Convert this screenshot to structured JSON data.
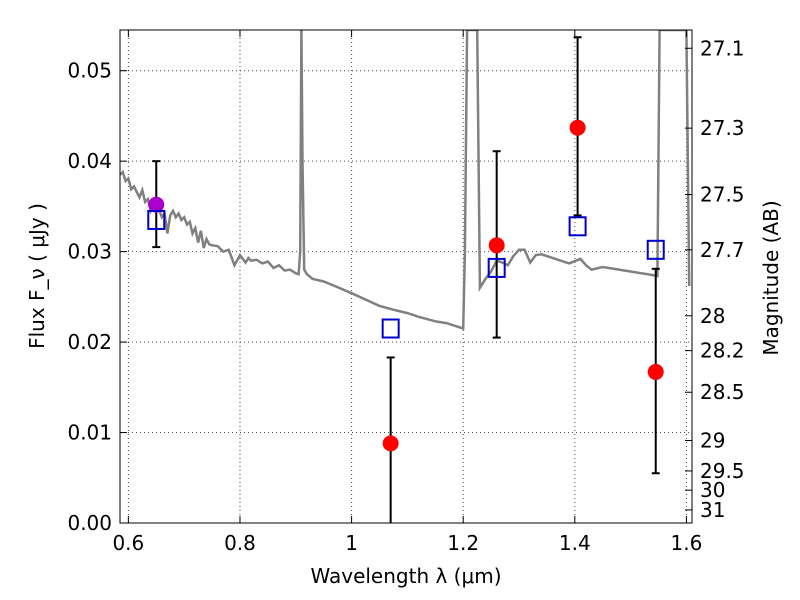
{
  "chart_data": {
    "type": "scatter",
    "title": "",
    "xlabel": "Wavelength  λ (μm)",
    "ylabel": "Flux  F_ν  ( μJy )",
    "y2label": "Magnitude (AB)",
    "xlim": [
      0.585,
      1.61
    ],
    "ylim": [
      0.0,
      0.0545
    ],
    "grid": true,
    "x_ticks": [
      0.6,
      0.8,
      1.0,
      1.2,
      1.4,
      1.6
    ],
    "x_tick_labels": [
      "0.6",
      "0.8",
      "1",
      "1.2",
      "1.4",
      "1.6"
    ],
    "y_ticks": [
      0.0,
      0.01,
      0.02,
      0.03,
      0.04,
      0.05
    ],
    "y_tick_labels": [
      "0.00",
      "0.01",
      "0.02",
      "0.03",
      "0.04",
      "0.05"
    ],
    "y2_ticks": [
      "27.1",
      "27.3",
      "27.5",
      "27.7",
      "28",
      "28.2",
      "28.5",
      "29",
      "29.5",
      "30",
      "31"
    ],
    "colors": {
      "model": "#808080",
      "observed": "#ff0000",
      "highlight": "#aa00cc",
      "synthetic": "#0000cc",
      "errorbar": "#000000"
    },
    "model_spectrum": {
      "x": [
        0.585,
        0.59,
        0.595,
        0.6,
        0.605,
        0.61,
        0.615,
        0.62,
        0.625,
        0.63,
        0.635,
        0.64,
        0.645,
        0.65,
        0.655,
        0.66,
        0.665,
        0.67,
        0.675,
        0.68,
        0.685,
        0.69,
        0.695,
        0.7,
        0.705,
        0.71,
        0.715,
        0.72,
        0.725,
        0.73,
        0.735,
        0.74,
        0.745,
        0.75,
        0.76,
        0.77,
        0.78,
        0.79,
        0.8,
        0.81,
        0.815,
        0.82,
        0.83,
        0.84,
        0.85,
        0.86,
        0.87,
        0.88,
        0.89,
        0.9,
        0.905,
        0.908,
        0.91,
        0.912,
        0.915,
        0.92,
        0.93,
        0.95,
        0.97,
        1.0,
        1.05,
        1.08,
        1.1,
        1.12,
        1.15,
        1.17,
        1.19,
        1.2,
        1.203,
        1.207,
        1.21,
        1.213,
        1.218,
        1.222,
        1.225,
        1.23,
        1.24,
        1.25,
        1.26,
        1.27,
        1.28,
        1.29,
        1.3,
        1.31,
        1.32,
        1.33,
        1.34,
        1.35,
        1.37,
        1.39,
        1.41,
        1.42,
        1.43,
        1.45,
        1.5,
        1.53,
        1.54,
        1.548,
        1.552,
        1.556,
        1.56,
        1.57,
        1.58,
        1.59,
        1.595,
        1.6,
        1.605
      ],
      "y": [
        0.0385,
        0.0388,
        0.0378,
        0.0381,
        0.0369,
        0.0372,
        0.0366,
        0.036,
        0.0368,
        0.0355,
        0.0358,
        0.0345,
        0.0352,
        0.0348,
        0.0346,
        0.0338,
        0.0342,
        0.032,
        0.034,
        0.0345,
        0.0338,
        0.0342,
        0.0335,
        0.0338,
        0.033,
        0.0333,
        0.032,
        0.0326,
        0.031,
        0.0323,
        0.0304,
        0.0314,
        0.0308,
        0.0307,
        0.0306,
        0.03,
        0.0302,
        0.0285,
        0.0296,
        0.0288,
        0.0293,
        0.029,
        0.0291,
        0.0287,
        0.0289,
        0.0282,
        0.0285,
        0.0279,
        0.028,
        0.0276,
        0.0275,
        0.03,
        0.0545,
        0.04,
        0.028,
        0.0275,
        0.027,
        0.0267,
        0.0262,
        0.0254,
        0.024,
        0.0235,
        0.0232,
        0.0228,
        0.0223,
        0.0221,
        0.0217,
        0.0215,
        0.03,
        0.0545,
        0.0545,
        0.0545,
        0.0545,
        0.0545,
        0.0545,
        0.026,
        0.027,
        0.0278,
        0.029,
        0.0288,
        0.0285,
        0.0295,
        0.0302,
        0.0302,
        0.0288,
        0.0296,
        0.0297,
        0.0295,
        0.0291,
        0.0287,
        0.0292,
        0.0285,
        0.028,
        0.0283,
        0.0278,
        0.0275,
        0.0274,
        0.0273,
        0.0545,
        0.0545,
        0.0545,
        0.0545,
        0.0545,
        0.0545,
        0.0545,
        0.0545,
        0.0262
      ],
      "note_key": "gray line"
    },
    "observed_points": [
      {
        "x": 0.65,
        "y": 0.0352,
        "err_low": 0.0047,
        "err_high": 0.0048,
        "color": "#aa00cc"
      },
      {
        "x": 1.07,
        "y": 0.0088,
        "err_low": 0.0088,
        "err_high": 0.0095
      },
      {
        "x": 1.26,
        "y": 0.0307,
        "err_low": 0.0102,
        "err_high": 0.0104
      },
      {
        "x": 1.405,
        "y": 0.0437,
        "err_low": 0.0097,
        "err_high": 0.01
      },
      {
        "x": 1.545,
        "y": 0.0167,
        "err_low": 0.0112,
        "err_high": 0.0114
      }
    ],
    "synthetic_points": [
      {
        "x": 0.65,
        "y": 0.0335
      },
      {
        "x": 1.07,
        "y": 0.0215
      },
      {
        "x": 1.26,
        "y": 0.0282
      },
      {
        "x": 1.405,
        "y": 0.0328
      },
      {
        "x": 1.545,
        "y": 0.0302
      }
    ]
  }
}
